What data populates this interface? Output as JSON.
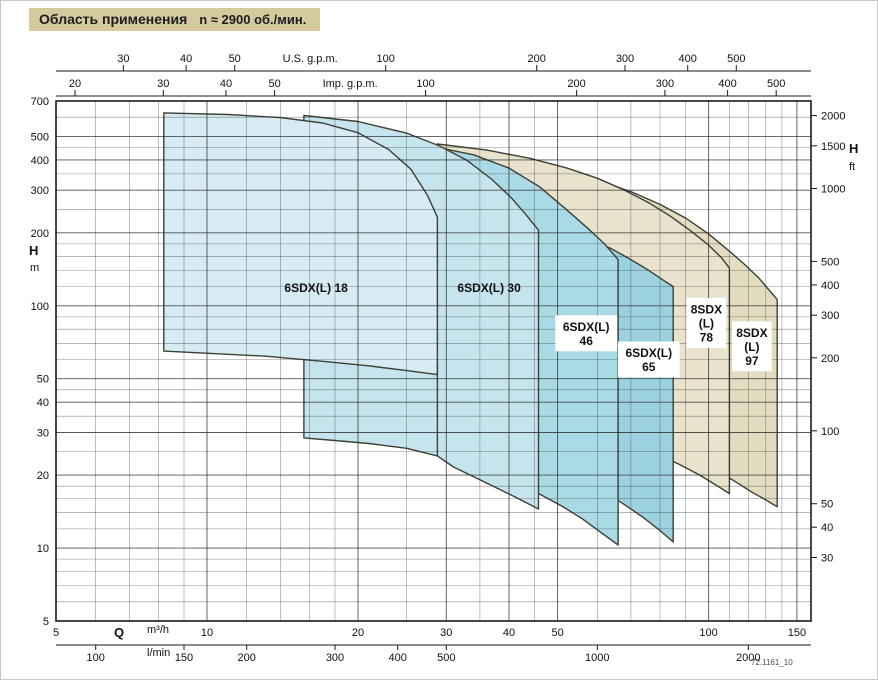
{
  "title": {
    "text": "Область применения",
    "speed": "n ≈ 2900 об./мин."
  },
  "watermark": "72.1161_10",
  "colors": {
    "title_bg": "#d5c99e",
    "outline": "#3d4035",
    "grid": "#2b2b2b",
    "frame": "#1a1a1a",
    "label_text": "#111111",
    "label_box_bg": "#ffffff"
  },
  "chart_data": {
    "type": "area",
    "title": "Область применения n ≈ 2900 об./мин.",
    "x_scale": "log",
    "y_scale": "log",
    "x_range": [
      5,
      160
    ],
    "y_range": [
      5,
      700
    ],
    "axes": {
      "top_us": {
        "label": "U.S. g.p.m.",
        "unit_to_m3h": 0.22712,
        "ticks": [
          30,
          40,
          50,
          100,
          200,
          300,
          400,
          500
        ]
      },
      "top_imp": {
        "label": "Imp. g.p.m.",
        "unit_to_m3h": 0.27277,
        "ticks": [
          20,
          30,
          40,
          50,
          100,
          200,
          300,
          400,
          500
        ]
      },
      "left": {
        "label": "H",
        "unit": "m",
        "ticks": [
          700,
          500,
          400,
          300,
          200,
          100,
          50,
          40,
          30,
          20,
          10,
          5
        ]
      },
      "right": {
        "label": "H",
        "unit": "ft",
        "unit_to_m": 0.3048,
        "ticks": [
          2000,
          1500,
          1000,
          500,
          400,
          300,
          200,
          100,
          50,
          40,
          30
        ]
      },
      "bottom_m3h": {
        "label": "Q",
        "unit": "m³/h",
        "ticks": [
          5,
          10,
          20,
          30,
          40,
          50,
          100,
          150
        ]
      },
      "bottom_lmin": {
        "unit": "l/min",
        "unit_to_m3h": 0.06,
        "ticks": [
          100,
          150,
          200,
          300,
          400,
          500,
          1000,
          2000
        ]
      }
    },
    "grid": {
      "x_major": [
        5,
        10,
        20,
        30,
        40,
        50,
        100,
        150
      ],
      "x_minor": [
        6,
        7,
        8,
        9,
        12,
        14,
        16,
        18,
        25,
        35,
        45,
        60,
        70,
        80,
        90,
        110,
        120,
        130,
        140
      ],
      "y_major": [
        5,
        10,
        20,
        30,
        40,
        50,
        100,
        200,
        300,
        400,
        500,
        700
      ],
      "y_minor": [
        6,
        7,
        8,
        9,
        12,
        14,
        16,
        18,
        25,
        35,
        45,
        60,
        70,
        80,
        90,
        120,
        140,
        160,
        180,
        250,
        350,
        450,
        600
      ]
    },
    "paint_order": "back-to-front",
    "series": [
      {
        "name": "8SDX(L) 97",
        "fill": "#e3dcc0",
        "points": [
          [
            60,
            330
          ],
          [
            70,
            296
          ],
          [
            80,
            262
          ],
          [
            90,
            230
          ],
          [
            100,
            198
          ],
          [
            110,
            168
          ],
          [
            118,
            148
          ],
          [
            126,
            130
          ],
          [
            132,
            116
          ],
          [
            137,
            106
          ],
          [
            137,
            14.8
          ],
          [
            130,
            15.8
          ],
          [
            122,
            17
          ],
          [
            114,
            18.6
          ],
          [
            106,
            20.4
          ],
          [
            98,
            22.4
          ],
          [
            88,
            25.5
          ],
          [
            78,
            29
          ],
          [
            68,
            33.5
          ],
          [
            60,
            38
          ]
        ]
      },
      {
        "name": "8SDX(L) 78",
        "fill": "#e9e3cd",
        "points": [
          [
            28.8,
            465
          ],
          [
            36,
            440
          ],
          [
            44,
            406
          ],
          [
            52,
            371
          ],
          [
            60,
            336
          ],
          [
            68,
            300
          ],
          [
            76,
            266
          ],
          [
            84,
            234
          ],
          [
            92,
            204
          ],
          [
            100,
            178
          ],
          [
            106,
            158
          ],
          [
            110,
            143
          ],
          [
            110,
            16.8
          ],
          [
            103,
            18.3
          ],
          [
            96,
            20
          ],
          [
            88,
            22
          ],
          [
            80,
            24.2
          ],
          [
            72,
            26.6
          ],
          [
            63,
            29.6
          ],
          [
            55,
            33
          ],
          [
            44,
            40
          ],
          [
            36,
            46
          ],
          [
            28.8,
            53
          ]
        ]
      },
      {
        "name": "6SDX(L) 65",
        "fill": "#9cd2e0",
        "points": [
          [
            45.8,
            200
          ],
          [
            52,
            196
          ],
          [
            58,
            188
          ],
          [
            64,
            172
          ],
          [
            70,
            155
          ],
          [
            76,
            140
          ],
          [
            81,
            128
          ],
          [
            85,
            120
          ],
          [
            85,
            10.6
          ],
          [
            80,
            11.8
          ],
          [
            74,
            13.4
          ],
          [
            68,
            15.1
          ],
          [
            62,
            17
          ],
          [
            56,
            18.9
          ],
          [
            50,
            20.9
          ],
          [
            45.8,
            22.5
          ]
        ]
      },
      {
        "name": "6SDX(L) 46",
        "fill": "#aadae6",
        "points": [
          [
            28.8,
            450
          ],
          [
            34,
            420
          ],
          [
            40,
            370
          ],
          [
            46,
            310
          ],
          [
            52,
            250
          ],
          [
            58,
            205
          ],
          [
            62,
            180
          ],
          [
            66,
            155
          ],
          [
            66,
            10.3
          ],
          [
            61,
            11.6
          ],
          [
            56,
            13.2
          ],
          [
            51,
            14.9
          ],
          [
            45.8,
            16.8
          ],
          [
            40,
            19.5
          ],
          [
            34,
            22.3
          ],
          [
            28.8,
            24.5
          ]
        ]
      },
      {
        "name": "6SDX(L) 30",
        "fill": "#c5e4ee",
        "points": [
          [
            15.6,
            610
          ],
          [
            20,
            576
          ],
          [
            25,
            516
          ],
          [
            29,
            458
          ],
          [
            33,
            398
          ],
          [
            37,
            332
          ],
          [
            40.5,
            278
          ],
          [
            43.5,
            234
          ],
          [
            45.8,
            205
          ],
          [
            45.8,
            14.5
          ],
          [
            41,
            16.3
          ],
          [
            36,
            18.6
          ],
          [
            31,
            21.6
          ],
          [
            28.8,
            24
          ],
          [
            25,
            25.8
          ],
          [
            21,
            27
          ],
          [
            18,
            27.8
          ],
          [
            15.6,
            28.5
          ]
        ]
      },
      {
        "name": "6SDX(L) 18",
        "fill": "#d7ebf3",
        "points": [
          [
            8.2,
            625
          ],
          [
            11,
            616
          ],
          [
            14,
            598
          ],
          [
            17,
            568
          ],
          [
            20,
            518
          ],
          [
            23,
            442
          ],
          [
            25.5,
            366
          ],
          [
            27.5,
            286
          ],
          [
            28.8,
            232
          ],
          [
            28.8,
            52
          ],
          [
            25,
            54
          ],
          [
            21,
            56.5
          ],
          [
            17,
            59
          ],
          [
            13,
            62
          ],
          [
            8.2,
            65
          ]
        ]
      }
    ],
    "extra_boundaries": [
      [
        [
          28.8,
          58
        ],
        [
          28.8,
          24
        ]
      ]
    ],
    "labels": [
      {
        "lines": [
          "6SDX(L) 18"
        ],
        "q": 16.5,
        "h": 119,
        "boxed": false
      },
      {
        "lines": [
          "6SDX(L) 30"
        ],
        "q": 36.5,
        "h": 119,
        "boxed": false
      },
      {
        "lines": [
          "6SDX(L)",
          "46"
        ],
        "q": 57,
        "h": 77,
        "boxed": true
      },
      {
        "lines": [
          "6SDX(L)",
          "65"
        ],
        "q": 76,
        "h": 60,
        "boxed": true
      },
      {
        "lines": [
          "8SDX",
          "(L)",
          "78"
        ],
        "q": 99,
        "h": 85,
        "boxed": true
      },
      {
        "lines": [
          "8SDX",
          "(L)",
          "97"
        ],
        "q": 122,
        "h": 68,
        "boxed": true
      }
    ]
  }
}
